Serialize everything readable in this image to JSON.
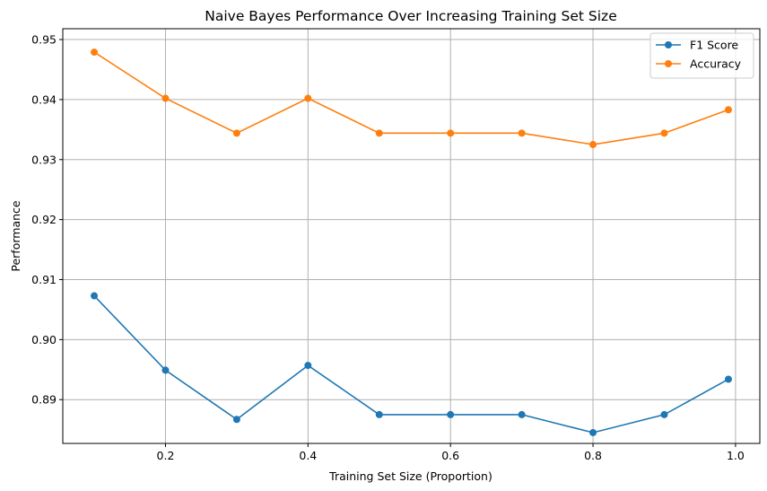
{
  "chart_data": {
    "type": "line",
    "title": "Naive Bayes Performance Over Increasing Training Set Size",
    "xlabel": "Training Set Size (Proportion)",
    "ylabel": "Performance",
    "x": [
      0.1,
      0.2,
      0.3,
      0.4,
      0.5,
      0.6,
      0.7,
      0.8,
      0.9,
      0.99
    ],
    "xlim": [
      0.0559,
      1.0341
    ],
    "ylim": [
      0.8827,
      0.9518
    ],
    "x_ticks": [
      0.2,
      0.4,
      0.6,
      0.8,
      1.0
    ],
    "x_tick_labels": [
      "0.2",
      "0.4",
      "0.6",
      "0.8",
      "1.0"
    ],
    "y_ticks": [
      0.89,
      0.9,
      0.91,
      0.92,
      0.93,
      0.94,
      0.95
    ],
    "y_tick_labels": [
      "0.89",
      "0.90",
      "0.91",
      "0.92",
      "0.93",
      "0.94",
      "0.95"
    ],
    "grid": true,
    "legend_position": "top-right",
    "series": [
      {
        "name": "F1 Score",
        "color": "#1f77b4",
        "marker": "circle",
        "values": [
          0.9073,
          0.8949,
          0.8867,
          0.8957,
          0.8875,
          0.8875,
          0.8875,
          0.8845,
          0.8875,
          0.8934
        ]
      },
      {
        "name": "Accuracy",
        "color": "#ff7f0e",
        "marker": "circle",
        "values": [
          0.9479,
          0.9402,
          0.9344,
          0.9402,
          0.9344,
          0.9344,
          0.9344,
          0.9325,
          0.9344,
          0.9383
        ]
      }
    ]
  }
}
